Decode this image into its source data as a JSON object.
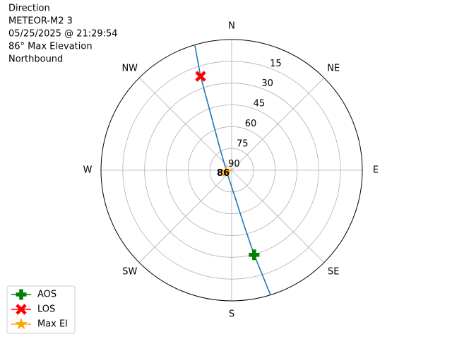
{
  "chart_data": {
    "type": "polar",
    "title_lines": [
      "Direction",
      "METEOR-M2 3",
      "05/25/2025 @ 21:29:54",
      "86° Max Elevation",
      "Northbound"
    ],
    "xlim": [
      0,
      360
    ],
    "xticks": [
      {
        "value": 0,
        "label": "N"
      },
      {
        "value": 45,
        "label": "NE"
      },
      {
        "value": 90,
        "label": "E"
      },
      {
        "value": 135,
        "label": "SE"
      },
      {
        "value": 180,
        "label": "S"
      },
      {
        "value": 225,
        "label": "SW"
      },
      {
        "value": 270,
        "label": "W"
      },
      {
        "value": 315,
        "label": "NW"
      }
    ],
    "ylim": [
      90,
      0
    ],
    "yticks": [
      15,
      30,
      45,
      60,
      75,
      90
    ],
    "grid": true,
    "track": {
      "color": "#1f77b4",
      "x": [
        162.7,
        165.1,
        167.2,
        172.7,
        254,
        333.4,
        339.7,
        341.7,
        343.6
      ],
      "values": [
        0,
        29.7,
        50.6,
        70.9,
        86.4,
        70.4,
        48.0,
        21.9,
        0
      ]
    },
    "series": [
      {
        "name": "AOS",
        "color": "#008000",
        "marker": "plus",
        "x": [
          165.1
        ],
        "values": [
          29.7
        ]
      },
      {
        "name": "LOS",
        "color": "#ff0000",
        "marker": "x",
        "x": [
          341.7
        ],
        "values": [
          21.9
        ]
      },
      {
        "name": "Max El",
        "color": "#ffa500",
        "marker": "star",
        "x": [
          254
        ],
        "values": [
          86
        ],
        "value_labels": [
          "86"
        ]
      }
    ],
    "legend": "lower left"
  }
}
